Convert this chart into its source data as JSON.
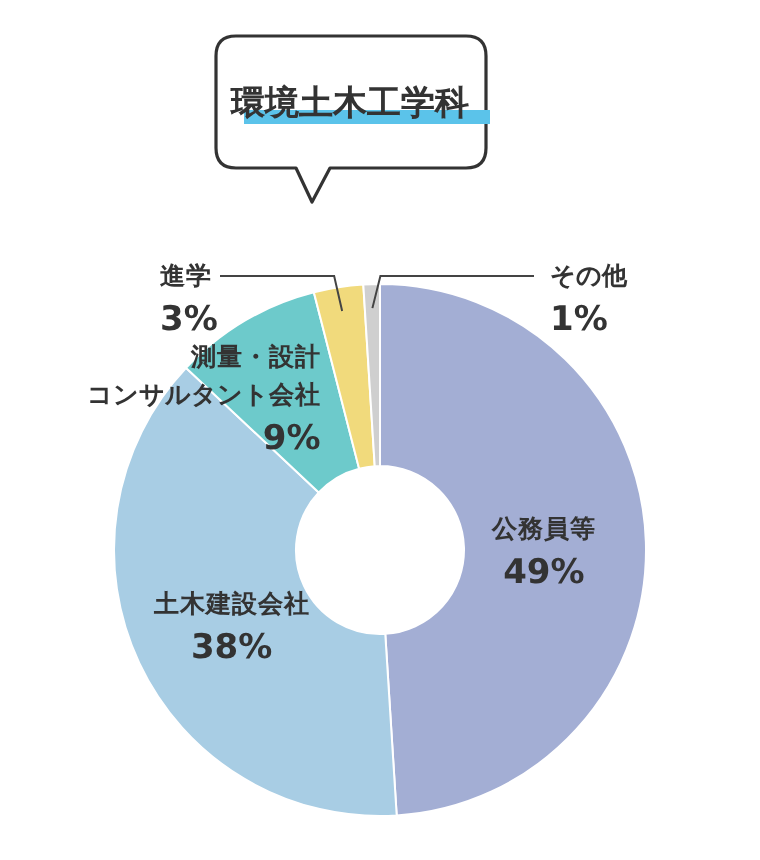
{
  "chart_data": {
    "type": "donut",
    "title": "環境土木工学科",
    "categories": [
      "公務員等",
      "土木建設会社",
      "測量・設計コンサルタント会社",
      "進学",
      "その他"
    ],
    "values": [
      49,
      38,
      9,
      3,
      1
    ],
    "colors": [
      "#a3aed4",
      "#a8cde4",
      "#6dcacb",
      "#f1da7c",
      "#cfcfcf"
    ],
    "value_labels": [
      "49%",
      "38%",
      "9%",
      "3%",
      "1%"
    ]
  }
}
